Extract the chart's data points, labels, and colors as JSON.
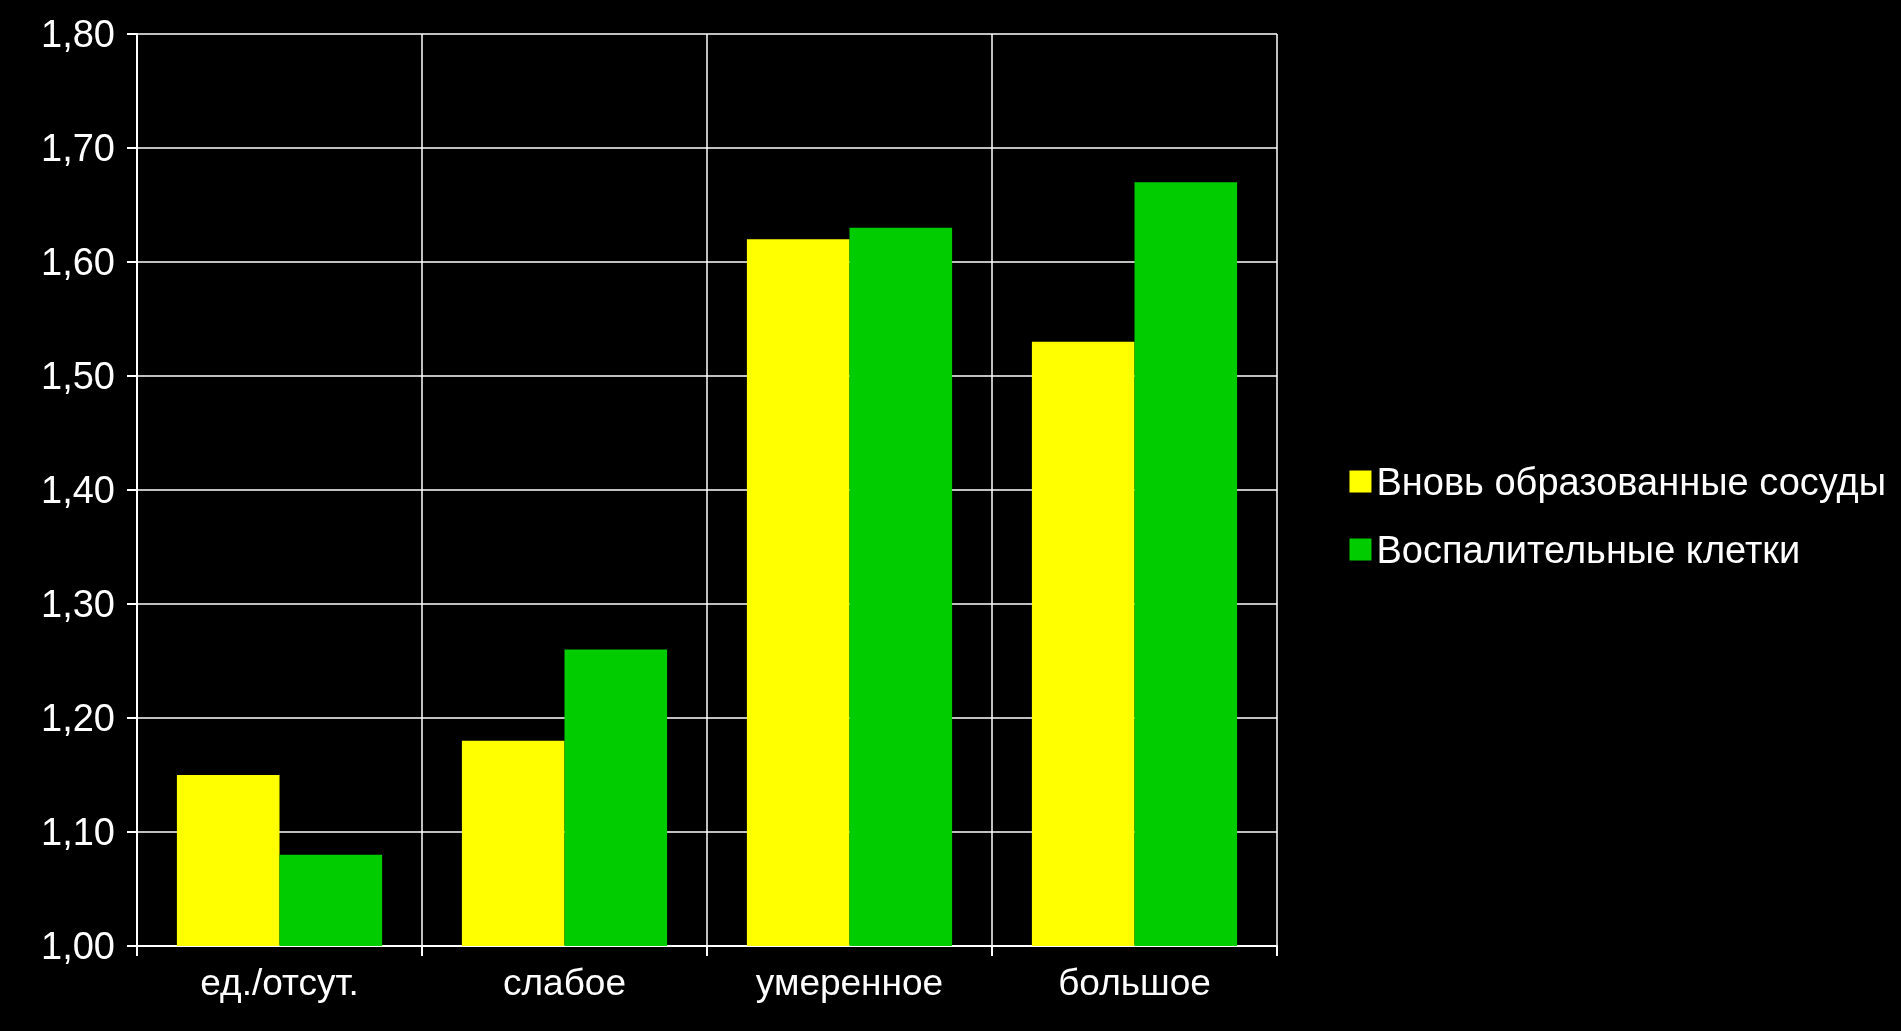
{
  "chart_data": {
    "type": "bar",
    "categories": [
      "ед./отсут.",
      "слабое",
      "умеренное",
      "большое"
    ],
    "series": [
      {
        "name": "Вновь образованные сосуды",
        "color": "#ffff00",
        "values": [
          1.15,
          1.18,
          1.62,
          1.53
        ]
      },
      {
        "name": "Воспалительные клетки",
        "color": "#00cc00",
        "values": [
          1.08,
          1.26,
          1.63,
          1.67
        ]
      }
    ],
    "ylim": [
      1.0,
      1.8
    ],
    "yticks": [
      {
        "value": 1.0,
        "label": "1,00"
      },
      {
        "value": 1.1,
        "label": "1,10"
      },
      {
        "value": 1.2,
        "label": "1,20"
      },
      {
        "value": 1.3,
        "label": "1,30"
      },
      {
        "value": 1.4,
        "label": "1,40"
      },
      {
        "value": 1.5,
        "label": "1,50"
      },
      {
        "value": 1.6,
        "label": "1,60"
      },
      {
        "value": 1.7,
        "label": "1,70"
      },
      {
        "value": 1.8,
        "label": "1,80"
      }
    ],
    "grid": true,
    "legend": "right"
  }
}
